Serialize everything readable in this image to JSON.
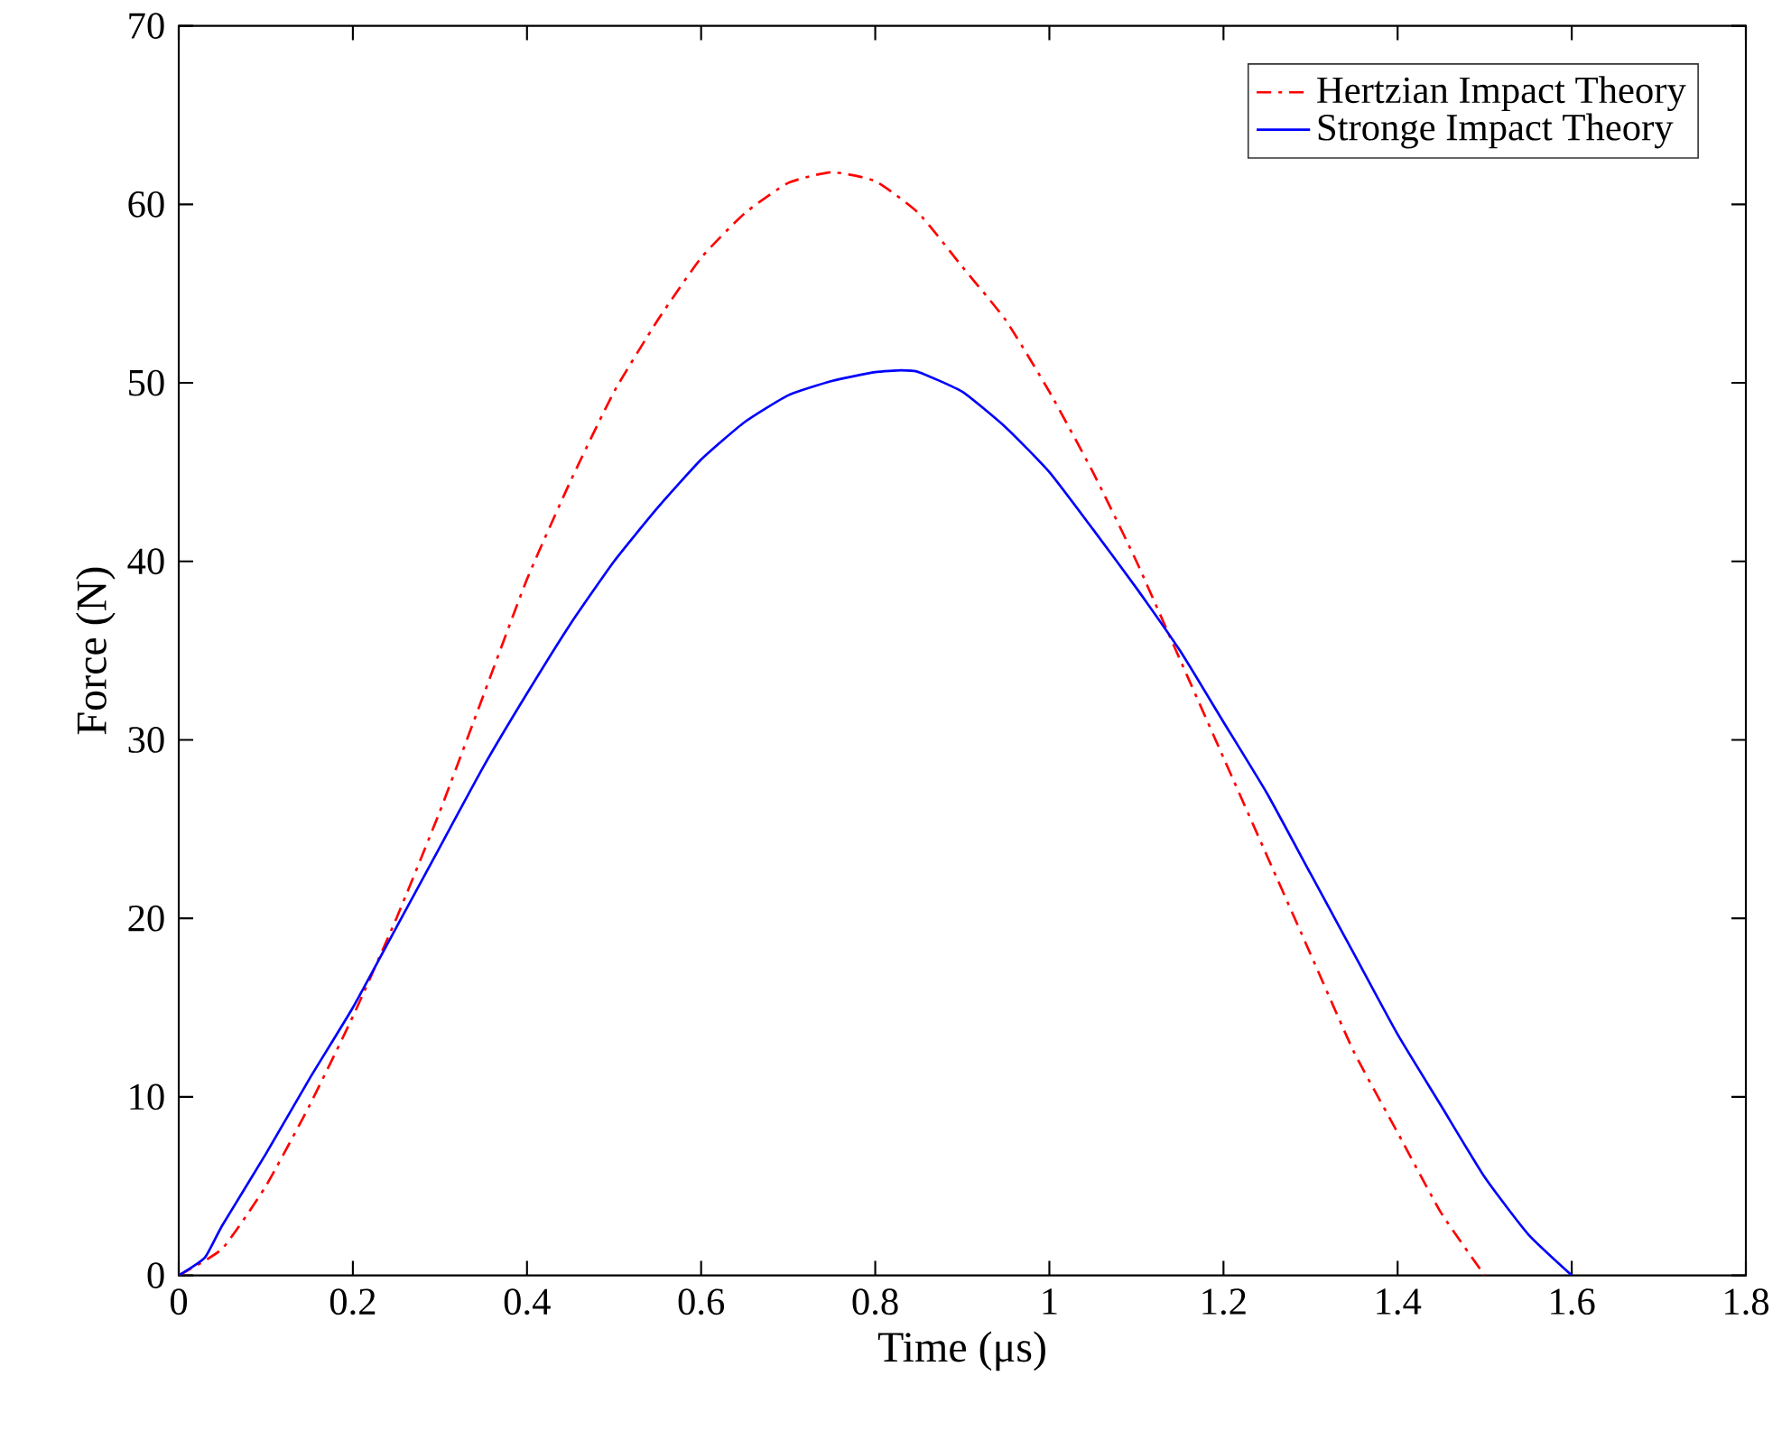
{
  "chart_data": {
    "type": "line",
    "xlabel": "Time (μs)",
    "ylabel": "Force (N)",
    "xlim": [
      0,
      1.8
    ],
    "ylim": [
      0,
      70
    ],
    "xticks": [
      0,
      0.2,
      0.4,
      0.6,
      0.8,
      1,
      1.2,
      1.4,
      1.6,
      1.8
    ],
    "yticks": [
      0,
      10,
      20,
      30,
      40,
      50,
      60,
      70
    ],
    "grid": false,
    "legend": "top right",
    "marker": "none",
    "series": [
      {
        "name": "Hertzian Impact Theory",
        "color": "#ff0000",
        "line_style": "dashdot",
        "x": [
          0,
          0.05,
          0.1,
          0.15,
          0.2,
          0.25,
          0.3,
          0.35,
          0.4,
          0.45,
          0.5,
          0.55,
          0.6,
          0.65,
          0.7,
          0.75,
          0.8,
          0.85,
          0.9,
          0.95,
          1.0,
          1.05,
          1.1,
          1.15,
          1.2,
          1.25,
          1.3,
          1.35,
          1.4,
          1.45,
          1.5
        ],
        "values": [
          0,
          1.5,
          5,
          9.5,
          14.5,
          20,
          26,
          32.5,
          39,
          44.5,
          49.5,
          53.5,
          57,
          59.5,
          61.2,
          61.8,
          61.3,
          59.5,
          56.5,
          53.5,
          49.5,
          45,
          40,
          34.5,
          29,
          23.5,
          18,
          12.5,
          8,
          3.5,
          0
        ]
      },
      {
        "name": "Stronge Impact Theory",
        "color": "#0000ff",
        "line_style": "solid",
        "x": [
          0,
          0.03,
          0.05,
          0.1,
          0.15,
          0.2,
          0.25,
          0.3,
          0.35,
          0.4,
          0.45,
          0.5,
          0.55,
          0.6,
          0.65,
          0.7,
          0.75,
          0.8,
          0.83,
          0.85,
          0.9,
          0.95,
          1.0,
          1.05,
          1.1,
          1.15,
          1.2,
          1.25,
          1.3,
          1.35,
          1.4,
          1.45,
          1.5,
          1.55,
          1.6
        ],
        "values": [
          0,
          1,
          2.8,
          6.8,
          11,
          15,
          19.5,
          24,
          28.5,
          32.6,
          36.5,
          40,
          43,
          45.7,
          47.8,
          49.3,
          50.1,
          50.6,
          50.7,
          50.6,
          49.5,
          47.5,
          45,
          41.8,
          38.5,
          35,
          31,
          27,
          22.5,
          18,
          13.5,
          9.5,
          5.5,
          2.3,
          0
        ]
      }
    ]
  }
}
